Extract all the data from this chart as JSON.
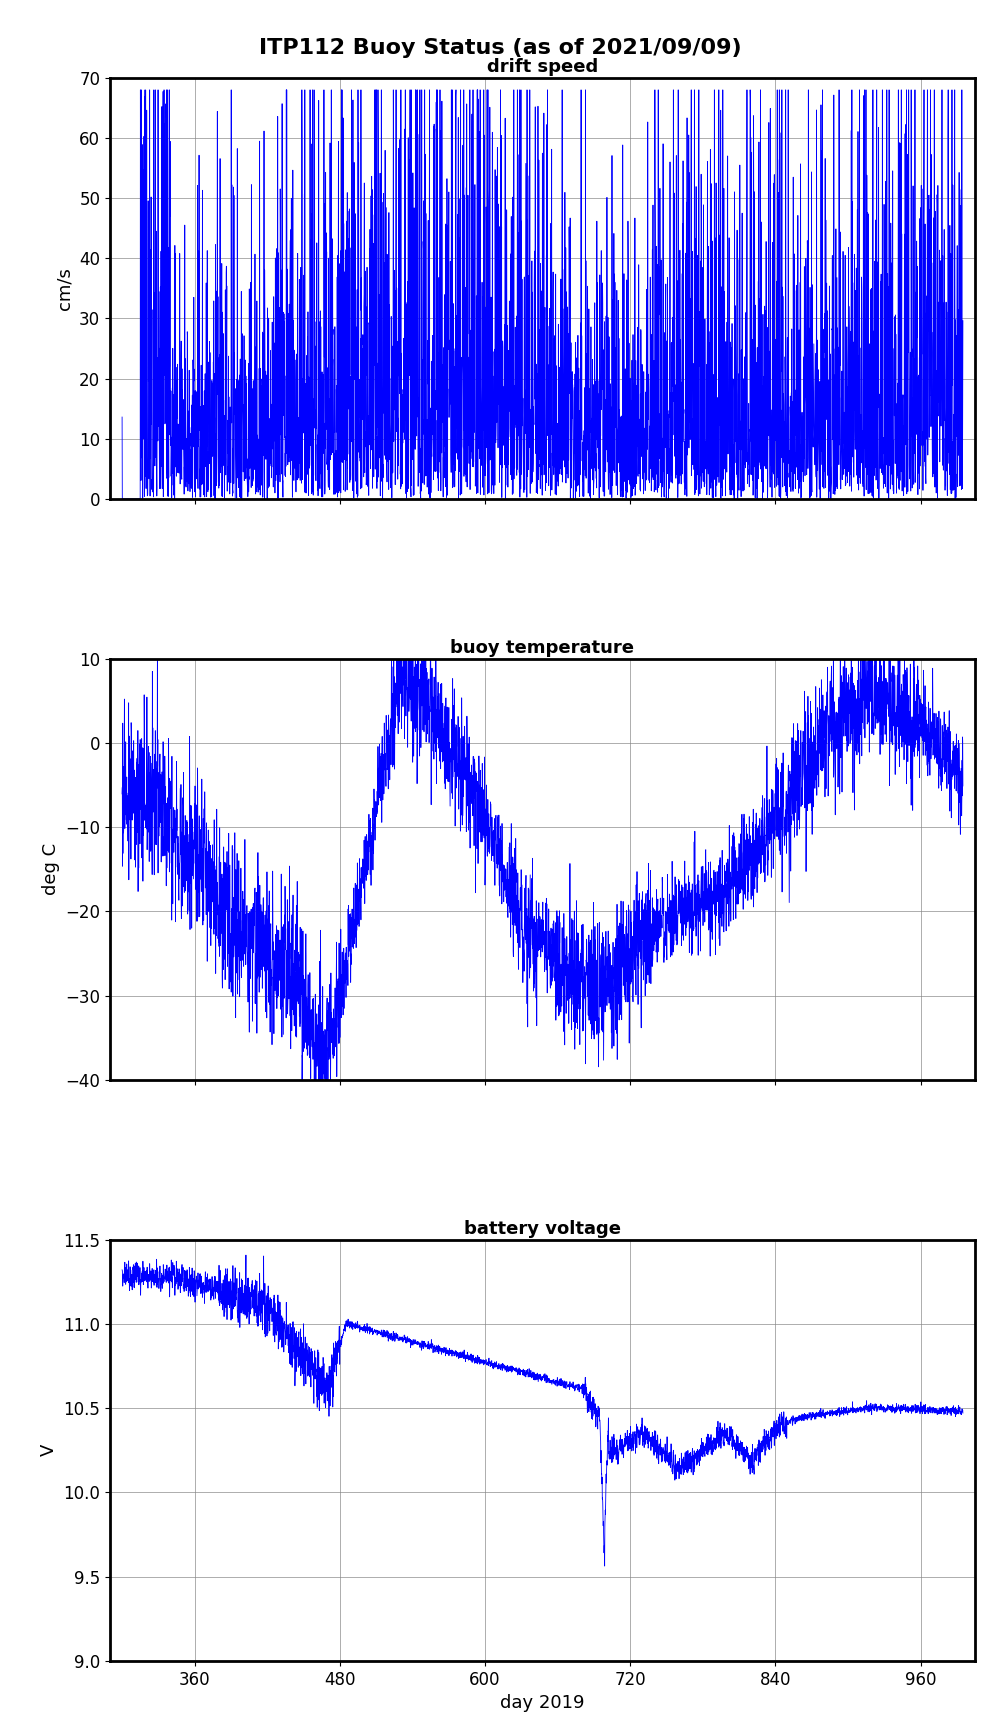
{
  "title": "ITP112 Buoy Status (as of 2021/09/09)",
  "xlabel": "day 2019",
  "xlim": [
    290,
    1005
  ],
  "xticks": [
    360,
    480,
    600,
    720,
    840,
    960
  ],
  "panel1": {
    "title": "drift speed",
    "ylabel": "cm/s",
    "ylim": [
      0,
      70
    ],
    "yticks": [
      0,
      10,
      20,
      30,
      40,
      50,
      60,
      70
    ]
  },
  "panel2": {
    "title": "buoy temperature",
    "ylabel": "deg C",
    "ylim": [
      -40,
      10
    ],
    "yticks": [
      -40,
      -30,
      -20,
      -10,
      0,
      10
    ]
  },
  "panel3": {
    "title": "battery voltage",
    "ylabel": "V",
    "ylim": [
      9.0,
      11.5
    ],
    "yticks": [
      9.0,
      9.5,
      10.0,
      10.5,
      11.0,
      11.5
    ]
  },
  "line_color": "#0000FF",
  "line_width": 0.6,
  "background_color": "#FFFFFF",
  "title_fontsize": 16,
  "panel_title_fontsize": 13,
  "tick_fontsize": 12,
  "label_fontsize": 13
}
